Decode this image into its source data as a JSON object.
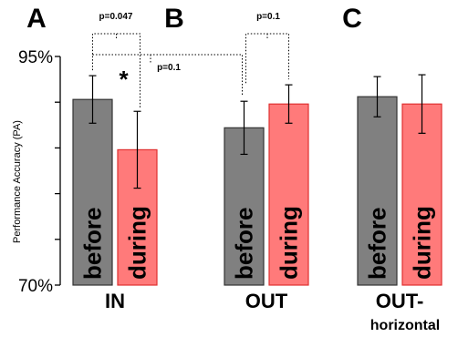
{
  "chart_data": {
    "type": "bar",
    "panels": [
      "A",
      "B",
      "C"
    ],
    "ylabel": "Performance Accuracy (PA)",
    "ylim": [
      70,
      95
    ],
    "yticks": [
      70,
      75,
      80,
      85,
      90,
      95
    ],
    "ytick_labels": [
      "70%",
      "95%"
    ],
    "groups": [
      {
        "label": "IN",
        "sublabel": ""
      },
      {
        "label": "OUT",
        "sublabel": ""
      },
      {
        "label": "OUT-",
        "sublabel": "horizontal"
      }
    ],
    "series": [
      {
        "label": "before",
        "color": "#808080",
        "stroke": "#333333",
        "values": [
          90.3,
          87.2,
          90.6
        ],
        "errors": [
          2.6,
          2.9,
          2.2
        ]
      },
      {
        "label": "during",
        "color": "#ff7a7a",
        "stroke": "#e03030",
        "values": [
          84.8,
          89.8,
          89.8
        ],
        "errors": [
          4.2,
          2.1,
          3.2
        ]
      }
    ],
    "annotations": [
      {
        "text": "p=0.047",
        "from": "IN.before",
        "to": "IN.during"
      },
      {
        "text": "p=0.1",
        "from": "IN.before",
        "to": "OUT.before"
      },
      {
        "text": "p=0.1",
        "from": "OUT.before",
        "to": "OUT.during"
      },
      {
        "text": "*",
        "at": "IN.during"
      }
    ],
    "grid": false,
    "legend": "none"
  }
}
